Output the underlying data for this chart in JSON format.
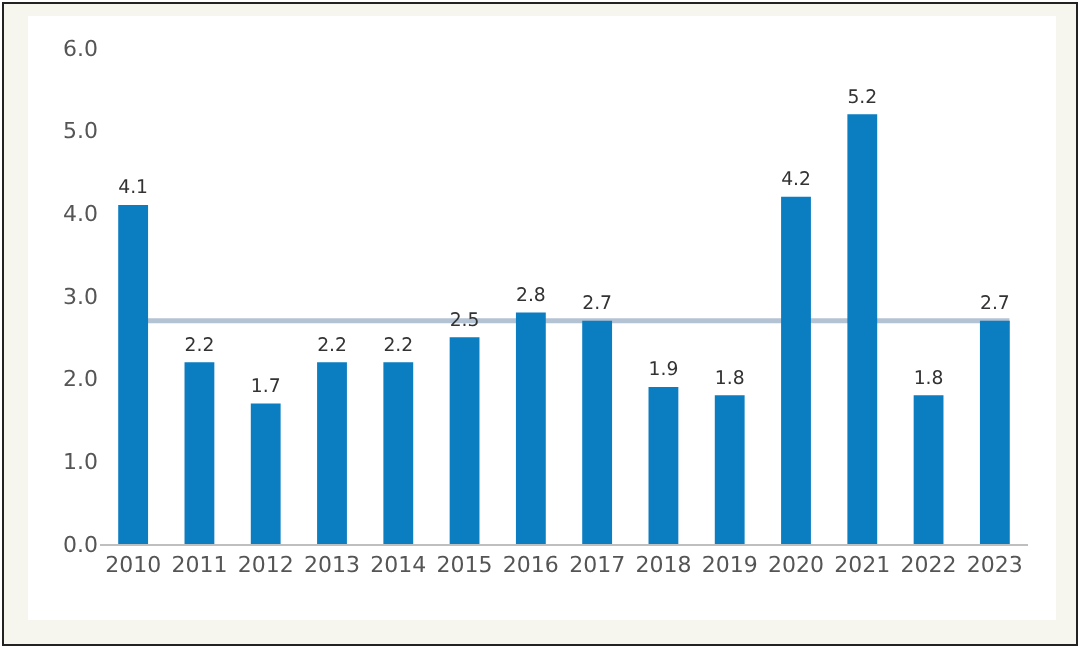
{
  "chart_data": {
    "type": "bar",
    "categories": [
      "2010",
      "2011",
      "2012",
      "2013",
      "2014",
      "2015",
      "2016",
      "2017",
      "2018",
      "2019",
      "2020",
      "2021",
      "2022",
      "2023"
    ],
    "values": [
      4.1,
      2.2,
      1.7,
      2.2,
      2.2,
      2.5,
      2.8,
      2.7,
      1.9,
      1.8,
      4.2,
      5.2,
      1.8,
      2.7
    ],
    "color": "#0b7dc1",
    "ylim": [
      0,
      6
    ],
    "yticks": [
      {
        "value": 0,
        "label": "0.0"
      },
      {
        "value": 1,
        "label": "1.0"
      },
      {
        "value": 2,
        "label": "2.0"
      },
      {
        "value": 3,
        "label": "3.0"
      },
      {
        "value": 4,
        "label": "4.0"
      },
      {
        "value": 5,
        "label": "5.0"
      },
      {
        "value": 6,
        "label": "6.0"
      }
    ],
    "data_labels": true,
    "grid": false,
    "ref_lines": [
      {
        "axis": "y",
        "value": 2.7,
        "color": "#b4c3d3"
      }
    ]
  }
}
